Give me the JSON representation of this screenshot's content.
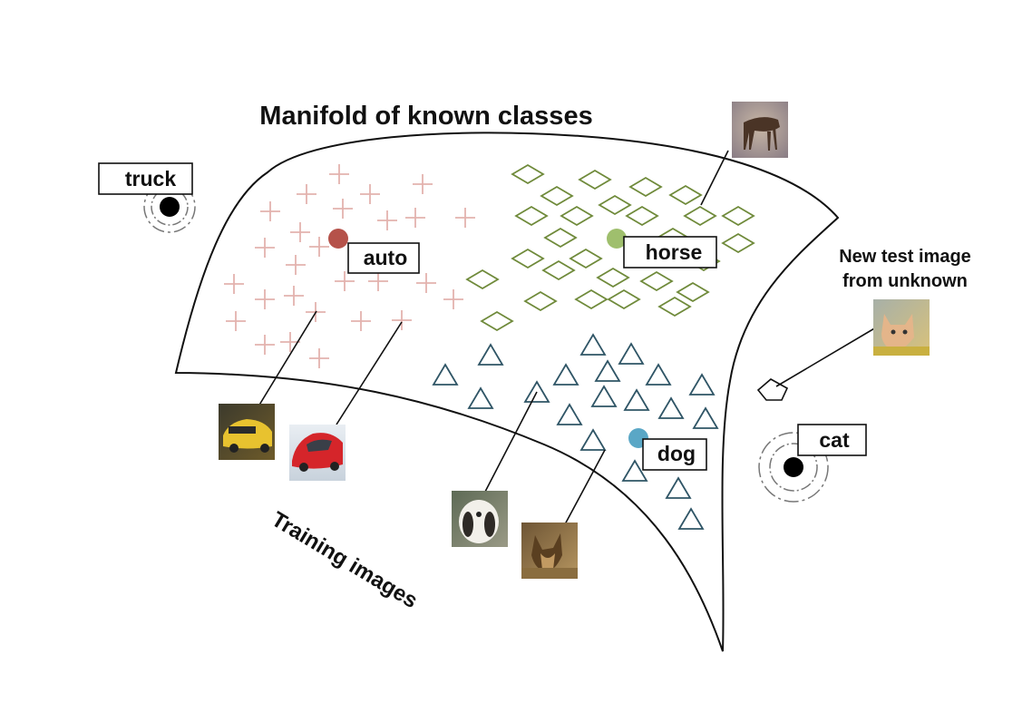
{
  "title": "Manifold of known classes",
  "training_caption": "Training images",
  "test_caption": "New test image from unknown",
  "test_caption_lines": [
    "New test image",
    "from unknown"
  ],
  "classes": {
    "auto": {
      "label": "auto",
      "color": "#b5524a",
      "marker": "plus",
      "marker_color": "#e3b2ae"
    },
    "horse": {
      "label": "horse",
      "color": "#9fbf6d",
      "marker": "diamond",
      "marker_color": "#6f8a3a"
    },
    "dog": {
      "label": "dog",
      "color": "#5aa7c6",
      "marker": "triangle",
      "marker_color": "#2f5566"
    }
  },
  "unknown_classes": {
    "truck": {
      "label": "truck"
    },
    "cat": {
      "label": "cat"
    }
  },
  "thumbnails": [
    {
      "name": "horse-image",
      "depicts": "horse"
    },
    {
      "name": "yellow-car-image",
      "depicts": "auto"
    },
    {
      "name": "red-car-image",
      "depicts": "auto"
    },
    {
      "name": "white-dog-image",
      "depicts": "dog"
    },
    {
      "name": "brown-dog-image",
      "depicts": "dog"
    },
    {
      "name": "cat-test-image",
      "depicts": "cat"
    }
  ],
  "colors": {
    "truck_dot": "#000000",
    "cat_dot": "#000000",
    "outline": "#111111"
  }
}
